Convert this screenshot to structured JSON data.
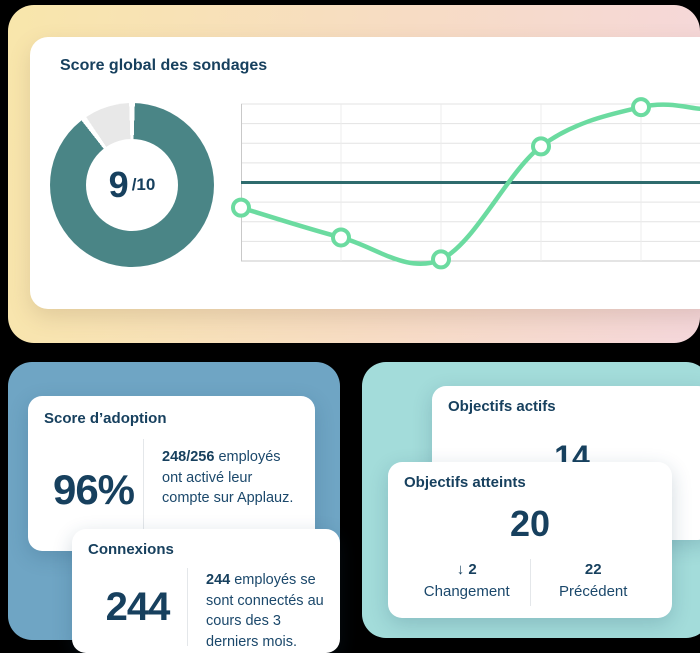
{
  "page": {
    "background": "#000000"
  },
  "survey_panel": {
    "title": "Score global des sondages",
    "gradient": {
      "from": "#F8E6AB",
      "mid": "#F7DCC4",
      "to": "#F5D7DB"
    },
    "donut": {
      "value": "9",
      "suffix": "/10",
      "score": 9,
      "max": 10,
      "ring_color": "#4A8586",
      "track_color": "#E8E8E8"
    },
    "chart_data": {
      "type": "line",
      "x": [
        1,
        2,
        3,
        4,
        5
      ],
      "values": [
        3.4,
        1.5,
        0.1,
        7.3,
        9.8
      ],
      "trail_value": 9.7,
      "reference_line": 5,
      "ylim": [
        0,
        10
      ],
      "rows": 8,
      "col_spacing_px": 100,
      "line_color": "#6BDBA0",
      "marker_fill": "#FFFFFF",
      "reference_color": "#2E6B6D",
      "grid_color": "#E3E3E3",
      "vgrid_color": "#ECECEC",
      "border_color": "#C9C9C9",
      "title": "",
      "xlabel": "",
      "ylabel": "",
      "legend": "none",
      "grid": "on"
    }
  },
  "adoption_panel": {
    "container_color": "#6FA5C4",
    "adoption_card": {
      "title": "Score d’adoption",
      "value": "96%",
      "description_bold": "248/256",
      "description_rest": " employés ont activé leur compte sur Applauz."
    },
    "connections_card": {
      "title": "Connexions",
      "value": "244",
      "description_bold": "244",
      "description_rest": " employés se sont connectés au cours des 3 derniers mois."
    }
  },
  "objectives_panel": {
    "container_color": "#A3DCDA",
    "active_card": {
      "title": "Objectifs actifs",
      "value": "14"
    },
    "achieved_card": {
      "title": "Objectifs atteints",
      "value": "20",
      "change_arrow": "↓",
      "change_value": "2",
      "change_label": "Changement",
      "previous_value": "22",
      "previous_label": "Précédent"
    }
  }
}
